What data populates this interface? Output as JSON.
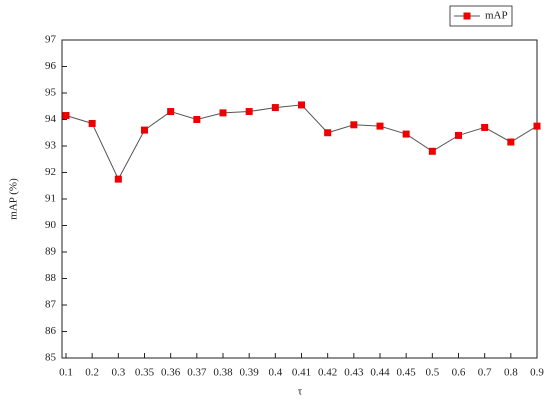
{
  "chart_data": {
    "type": "line",
    "x_label": "τ",
    "y_label": "mAP (%)",
    "categories": [
      "0.1",
      "0.2",
      "0.3",
      "0.35",
      "0.36",
      "0.37",
      "0.38",
      "0.39",
      "0.4",
      "0.41",
      "0.42",
      "0.43",
      "0.44",
      "0.45",
      "0.5",
      "0.6",
      "0.7",
      "0.8",
      "0.9"
    ],
    "series": [
      {
        "name": "mAP",
        "color": "#ee0000",
        "values": [
          94.15,
          93.85,
          91.75,
          93.6,
          94.3,
          94.0,
          94.25,
          94.3,
          94.45,
          94.55,
          93.5,
          93.8,
          93.75,
          93.45,
          92.8,
          93.4,
          93.7,
          93.15,
          93.75
        ]
      }
    ],
    "ylim": [
      85,
      97
    ],
    "yticks": [
      85,
      86,
      87,
      88,
      89,
      90,
      91,
      92,
      93,
      94,
      95,
      96,
      97
    ],
    "legend": "top-right"
  }
}
